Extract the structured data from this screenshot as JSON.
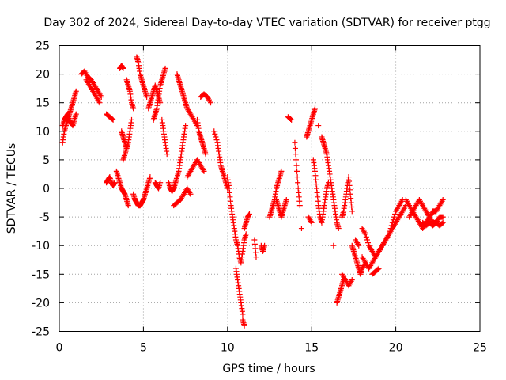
{
  "chart_data": {
    "type": "scatter",
    "title": "Day 302 of 2024, Sidereal Day-to-day VTEC variation (SDTVAR) for receiver ptgg",
    "xlabel": "GPS time / hours",
    "ylabel": "SDTVAR / TECUs",
    "xlim": [
      0,
      25
    ],
    "ylim": [
      -25,
      25
    ],
    "xticks": [
      "0",
      "5",
      "10",
      "15",
      "20",
      "25"
    ],
    "yticks": [
      "25",
      "20",
      "15",
      "10",
      "5",
      "0",
      "-5",
      "-10",
      "-15",
      "-20",
      "-25"
    ],
    "grid": true,
    "marker": "+",
    "color": "#ff0000",
    "series": [
      {
        "x": [
          0.2,
          0.3,
          0.4,
          0.5,
          0.6,
          0.7,
          0.8,
          0.9,
          1.0
        ],
        "y": [
          8,
          10,
          11,
          12,
          13,
          14,
          15,
          16,
          17
        ]
      },
      {
        "x": [
          0.2,
          0.3,
          0.4,
          0.5,
          0.6,
          0.7,
          0.8,
          0.9,
          1.0
        ],
        "y": [
          11,
          12,
          12.5,
          13,
          12,
          11.5,
          11,
          12,
          13
        ]
      },
      {
        "x": [
          1.3,
          1.5,
          1.7,
          1.9,
          2.1,
          2.3,
          2.5
        ],
        "y": [
          20,
          20.5,
          19.5,
          19,
          18,
          17,
          16
        ]
      },
      {
        "x": [
          1.6,
          1.8,
          2.0,
          2.2,
          2.4
        ],
        "y": [
          19,
          18,
          17,
          16,
          15
        ]
      },
      {
        "x": [
          2.8,
          3.0,
          3.2
        ],
        "y": [
          13,
          12.5,
          12
        ]
      },
      {
        "x": [
          2.8,
          2.9,
          3.0,
          3.1,
          3.2,
          3.3
        ],
        "y": [
          1,
          1.5,
          2,
          1,
          0.5,
          1
        ]
      },
      {
        "x": [
          3.4,
          3.5,
          3.6,
          3.7,
          3.8,
          3.9,
          4.0,
          4.1
        ],
        "y": [
          3,
          2,
          1,
          0,
          -0.5,
          -1,
          -2,
          -3
        ]
      },
      {
        "x": [
          3.6,
          3.7,
          3.8
        ],
        "y": [
          21,
          21.5,
          21
        ]
      },
      {
        "x": [
          3.7,
          3.8,
          3.9,
          4.0
        ],
        "y": [
          10,
          9,
          8,
          7
        ]
      },
      {
        "x": [
          3.8,
          3.9,
          4.0,
          4.1,
          4.2,
          4.3
        ],
        "y": [
          5,
          6,
          7,
          8,
          10,
          12
        ]
      },
      {
        "x": [
          4.0,
          4.1,
          4.2,
          4.3,
          4.4
        ],
        "y": [
          19,
          18,
          17,
          15,
          14
        ]
      },
      {
        "x": [
          4.4,
          4.5,
          4.6,
          4.7,
          4.8
        ],
        "y": [
          -1,
          -2,
          -2.5,
          -3,
          -3
        ]
      },
      {
        "x": [
          4.6,
          4.7,
          4.8,
          4.9,
          5.0,
          5.1,
          5.2
        ],
        "y": [
          23,
          22,
          20,
          19,
          18,
          17,
          16
        ]
      },
      {
        "x": [
          4.8,
          4.9,
          5.0,
          5.1,
          5.2,
          5.3,
          5.4
        ],
        "y": [
          -3,
          -2.5,
          -2,
          -1,
          0,
          1,
          2
        ]
      },
      {
        "x": [
          5.3,
          5.4,
          5.5,
          5.6,
          5.7,
          5.8,
          5.9,
          6.0
        ],
        "y": [
          14,
          15,
          16,
          17,
          18,
          17,
          16,
          15
        ]
      },
      {
        "x": [
          5.6,
          5.7,
          5.8,
          5.9,
          6.0,
          6.1,
          6.2,
          6.3
        ],
        "y": [
          12,
          13,
          14,
          16,
          18,
          19,
          20,
          21
        ]
      },
      {
        "x": [
          5.7,
          5.8,
          5.9,
          6.0
        ],
        "y": [
          1,
          0.5,
          0,
          1
        ]
      },
      {
        "x": [
          6.1,
          6.2,
          6.3,
          6.4
        ],
        "y": [
          12,
          10,
          8,
          6
        ]
      },
      {
        "x": [
          6.5,
          6.6,
          6.7,
          6.8,
          6.9
        ],
        "y": [
          1,
          0,
          -0.5,
          0,
          1
        ]
      },
      {
        "x": [
          6.8,
          6.9,
          7.0,
          7.1,
          7.2,
          7.3,
          7.4,
          7.5
        ],
        "y": [
          0,
          1,
          2,
          3,
          5,
          7,
          9,
          11
        ]
      },
      {
        "x": [
          6.8,
          7.0,
          7.2,
          7.4,
          7.6,
          7.8
        ],
        "y": [
          -3,
          -2.5,
          -2,
          -1,
          0,
          -1
        ]
      },
      {
        "x": [
          7.0,
          7.1,
          7.2,
          7.3,
          7.4,
          7.5,
          7.6,
          7.8,
          8.0,
          8.2
        ],
        "y": [
          20,
          19,
          18,
          17,
          16,
          15,
          14,
          13,
          12,
          11
        ]
      },
      {
        "x": [
          7.6,
          7.8,
          8.0,
          8.2,
          8.4,
          8.6
        ],
        "y": [
          2,
          3,
          4,
          5,
          4,
          3
        ]
      },
      {
        "x": [
          8.2,
          8.3,
          8.4,
          8.5,
          8.6,
          8.7
        ],
        "y": [
          12,
          10,
          9,
          8,
          7,
          6
        ]
      },
      {
        "x": [
          8.4,
          8.6,
          8.8,
          9.0
        ],
        "y": [
          16,
          16.5,
          16,
          15
        ]
      },
      {
        "x": [
          9.2,
          9.4,
          9.5,
          9.6,
          9.7,
          9.8,
          9.9,
          10.0
        ],
        "y": [
          10,
          8,
          6,
          4,
          3,
          2,
          1,
          0
        ]
      },
      {
        "x": [
          10.0,
          10.1,
          10.2,
          10.3,
          10.4,
          10.5,
          10.6,
          10.7,
          10.8,
          10.9,
          11.0,
          11.1
        ],
        "y": [
          2,
          0,
          -3,
          -5,
          -7,
          -9,
          -10,
          -12,
          -13,
          -11,
          -9,
          -8
        ]
      },
      {
        "x": [
          10.5,
          10.6,
          10.7,
          10.8,
          10.9
        ],
        "y": [
          -14,
          -16,
          -18,
          -20,
          -22
        ]
      },
      {
        "x": [
          10.9,
          11.0
        ],
        "y": [
          -23,
          -24
        ]
      },
      {
        "x": [
          11.0,
          11.1,
          11.2,
          11.3
        ],
        "y": [
          -7,
          -6,
          -5,
          -4.5
        ]
      },
      {
        "x": [
          11.6,
          11.7
        ],
        "y": [
          -9,
          -12
        ]
      },
      {
        "x": [
          12.0,
          12.1,
          12.2
        ],
        "y": [
          -10,
          -11,
          -10
        ]
      },
      {
        "x": [
          12.5,
          12.6,
          12.7,
          12.8,
          12.9,
          13.0,
          13.1,
          13.2
        ],
        "y": [
          -5,
          -4,
          -3,
          -2,
          0,
          1,
          2,
          3
        ]
      },
      {
        "x": [
          12.9,
          13.0,
          13.1,
          13.2,
          13.3,
          13.4,
          13.5
        ],
        "y": [
          -2,
          -3,
          -4,
          -5,
          -4,
          -3,
          -2
        ]
      },
      {
        "x": [
          13.6,
          13.8
        ],
        "y": [
          12.5,
          12
        ]
      },
      {
        "x": [
          14.0,
          14.1,
          14.2,
          14.3
        ],
        "y": [
          8,
          4,
          0,
          -3
        ]
      },
      {
        "x": [
          14.4
        ],
        "y": [
          -7
        ]
      },
      {
        "x": [
          14.7,
          14.8,
          14.9,
          15.0,
          15.1,
          15.2
        ],
        "y": [
          9,
          10,
          11,
          12,
          13,
          14
        ]
      },
      {
        "x": [
          14.8,
          15.0
        ],
        "y": [
          -5,
          -6
        ]
      },
      {
        "x": [
          15.1,
          15.2,
          15.3,
          15.4,
          15.5,
          15.6,
          15.7,
          15.8,
          15.9,
          16.0
        ],
        "y": [
          5,
          3,
          0,
          -3,
          -5,
          -6,
          -4,
          -2,
          0,
          1
        ]
      },
      {
        "x": [
          15.4
        ],
        "y": [
          11
        ]
      },
      {
        "x": [
          15.6,
          15.7,
          15.8,
          15.9,
          16.0,
          16.1,
          16.2,
          16.3,
          16.4,
          16.5,
          16.6
        ],
        "y": [
          9,
          8,
          7,
          6,
          4,
          2,
          0,
          -2,
          -4,
          -6,
          -7
        ]
      },
      {
        "x": [
          16.3
        ],
        "y": [
          -10
        ]
      },
      {
        "x": [
          16.5,
          16.6,
          16.7,
          16.8,
          16.9
        ],
        "y": [
          -20,
          -19,
          -18,
          -17,
          -16
        ]
      },
      {
        "x": [
          16.8,
          17.0,
          17.2,
          17.4
        ],
        "y": [
          -15,
          -16,
          -17,
          -16
        ]
      },
      {
        "x": [
          16.8,
          16.9,
          17.0,
          17.1,
          17.2,
          17.3,
          17.4
        ],
        "y": [
          -5,
          -4,
          -2,
          0,
          2,
          -1,
          -4
        ]
      },
      {
        "x": [
          17.6,
          17.8
        ],
        "y": [
          -9,
          -10
        ]
      },
      {
        "x": [
          17.4,
          17.5,
          17.6,
          17.7,
          17.8,
          17.9,
          18.0,
          18.2
        ],
        "y": [
          -10,
          -11,
          -12,
          -13,
          -14,
          -15,
          -14,
          -13
        ]
      },
      {
        "x": [
          18.0,
          18.2,
          18.4,
          18.6,
          18.8,
          19.0,
          19.2,
          19.4,
          19.6,
          19.8,
          20.0,
          20.2,
          20.4,
          20.6
        ],
        "y": [
          -7,
          -8,
          -10,
          -11,
          -12,
          -11,
          -10,
          -9,
          -8,
          -7,
          -6,
          -5,
          -4,
          -3
        ]
      },
      {
        "x": [
          18.0,
          18.2,
          18.4,
          18.6,
          18.8,
          19.0,
          19.2,
          19.4,
          19.6,
          19.8,
          20.0,
          20.2,
          20.4
        ],
        "y": [
          -12,
          -13,
          -14,
          -13,
          -12,
          -11,
          -10,
          -9,
          -8,
          -6,
          -4,
          -3,
          -2
        ]
      },
      {
        "x": [
          18.6,
          18.8,
          19.0
        ],
        "y": [
          -15,
          -14.5,
          -14
        ]
      },
      {
        "x": [
          20.6,
          20.8,
          21.0,
          21.2,
          21.4,
          21.6,
          21.8,
          22.0,
          22.2,
          22.4,
          22.6,
          22.8
        ],
        "y": [
          -2,
          -3,
          -4,
          -5,
          -6,
          -7,
          -6,
          -5,
          -4,
          -4,
          -3,
          -2
        ]
      },
      {
        "x": [
          20.8,
          21.0,
          21.2,
          21.4,
          21.6,
          21.8,
          22.0,
          22.2,
          22.4,
          22.6,
          22.8
        ],
        "y": [
          -5,
          -4,
          -3,
          -2,
          -3,
          -4,
          -5,
          -6,
          -6,
          -5,
          -5
        ]
      },
      {
        "x": [
          21.6,
          21.8,
          22.0,
          22.2,
          22.4,
          22.6,
          22.8
        ],
        "y": [
          -6,
          -6.5,
          -6,
          -6.5,
          -6,
          -6.5,
          -6
        ]
      }
    ]
  }
}
